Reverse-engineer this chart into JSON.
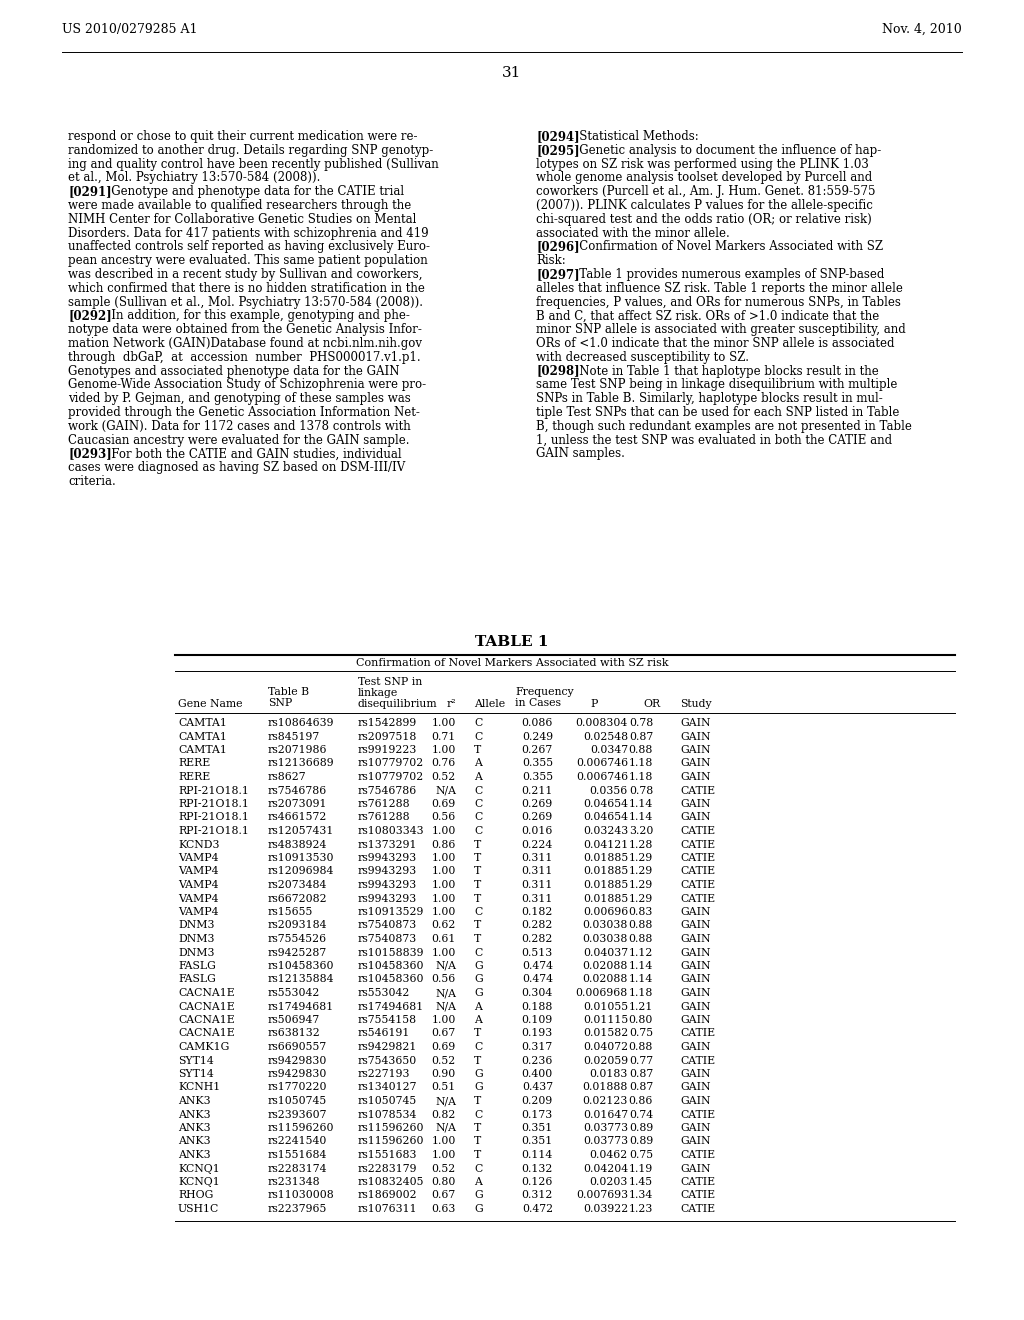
{
  "page_number": "31",
  "patent_number": "US 2010/0279285 A1",
  "patent_date": "Nov. 4, 2010",
  "background_color": "#ffffff",
  "text_color": "#000000",
  "left_column_lines": [
    {
      "text": "respond or chose to quit their current medication were re-",
      "bold_prefix": ""
    },
    {
      "text": "randomized to another drug. Details regarding SNP genotyp-",
      "bold_prefix": ""
    },
    {
      "text": "ing and quality control have been recently published (Sullivan",
      "bold_prefix": ""
    },
    {
      "text": "et al., Mol. Psychiatry 13:570-584 (2008)).",
      "bold_prefix": ""
    },
    {
      "text": "   Genotype and phenotype data for the CATIE trial",
      "bold_prefix": "[0291]"
    },
    {
      "text": "were made available to qualified researchers through the",
      "bold_prefix": ""
    },
    {
      "text": "NIMH Center for Collaborative Genetic Studies on Mental",
      "bold_prefix": ""
    },
    {
      "text": "Disorders. Data for 417 patients with schizophrenia and 419",
      "bold_prefix": ""
    },
    {
      "text": "unaffected controls self reported as having exclusively Euro-",
      "bold_prefix": ""
    },
    {
      "text": "pean ancestry were evaluated. This same patient population",
      "bold_prefix": ""
    },
    {
      "text": "was described in a recent study by Sullivan and coworkers,",
      "bold_prefix": ""
    },
    {
      "text": "which confirmed that there is no hidden stratification in the",
      "bold_prefix": ""
    },
    {
      "text": "sample (Sullivan et al., Mol. Psychiatry 13:570-584 (2008)).",
      "bold_prefix": ""
    },
    {
      "text": "   In addition, for this example, genotyping and phe-",
      "bold_prefix": "[0292]"
    },
    {
      "text": "notype data were obtained from the Genetic Analysis Infor-",
      "bold_prefix": ""
    },
    {
      "text": "mation Network (GAIN)Database found at ncbi.nlm.nih.gov",
      "bold_prefix": ""
    },
    {
      "text": "through  dbGaP,  at  accession  number  PHS000017.v1.p1.",
      "bold_prefix": ""
    },
    {
      "text": "Genotypes and associated phenotype data for the GAIN",
      "bold_prefix": ""
    },
    {
      "text": "Genome-Wide Association Study of Schizophrenia were pro-",
      "bold_prefix": ""
    },
    {
      "text": "vided by P. Gejman, and genotyping of these samples was",
      "bold_prefix": ""
    },
    {
      "text": "provided through the Genetic Association Information Net-",
      "bold_prefix": ""
    },
    {
      "text": "work (GAIN). Data for 1172 cases and 1378 controls with",
      "bold_prefix": ""
    },
    {
      "text": "Caucasian ancestry were evaluated for the GAIN sample.",
      "bold_prefix": ""
    },
    {
      "text": "   For both the CATIE and GAIN studies, individual",
      "bold_prefix": "[0293]"
    },
    {
      "text": "cases were diagnosed as having SZ based on DSM-III/IV",
      "bold_prefix": ""
    },
    {
      "text": "criteria.",
      "bold_prefix": ""
    }
  ],
  "right_column_lines": [
    {
      "text": "   Statistical Methods:",
      "bold_prefix": "[0294]"
    },
    {
      "text": "   Genetic analysis to document the influence of hap-",
      "bold_prefix": "[0295]"
    },
    {
      "text": "lotypes on SZ risk was performed using the PLINK 1.03",
      "bold_prefix": ""
    },
    {
      "text": "whole genome analysis toolset developed by Purcell and",
      "bold_prefix": ""
    },
    {
      "text": "coworkers (Purcell et al., Am. J. Hum. Genet. 81:559-575",
      "bold_prefix": ""
    },
    {
      "text": "(2007)). PLINK calculates P values for the allele-specific",
      "bold_prefix": ""
    },
    {
      "text": "chi-squared test and the odds ratio (OR; or relative risk)",
      "bold_prefix": ""
    },
    {
      "text": "associated with the minor allele.",
      "bold_prefix": ""
    },
    {
      "text": "   Confirmation of Novel Markers Associated with SZ",
      "bold_prefix": "[0296]"
    },
    {
      "text": "Risk:",
      "bold_prefix": ""
    },
    {
      "text": "   Table 1 provides numerous examples of SNP-based",
      "bold_prefix": "[0297]"
    },
    {
      "text": "alleles that influence SZ risk. Table 1 reports the minor allele",
      "bold_prefix": ""
    },
    {
      "text": "frequencies, P values, and ORs for numerous SNPs, in Tables",
      "bold_prefix": ""
    },
    {
      "text": "B and C, that affect SZ risk. ORs of >1.0 indicate that the",
      "bold_prefix": ""
    },
    {
      "text": "minor SNP allele is associated with greater susceptibility, and",
      "bold_prefix": ""
    },
    {
      "text": "ORs of <1.0 indicate that the minor SNP allele is associated",
      "bold_prefix": ""
    },
    {
      "text": "with decreased susceptibility to SZ.",
      "bold_prefix": ""
    },
    {
      "text": "   Note in Table 1 that haplotype blocks result in the",
      "bold_prefix": "[0298]"
    },
    {
      "text": "same Test SNP being in linkage disequilibrium with multiple",
      "bold_prefix": ""
    },
    {
      "text": "SNPs in Table B. Similarly, haplotype blocks result in mul-",
      "bold_prefix": ""
    },
    {
      "text": "tiple Test SNPs that can be used for each SNP listed in Table",
      "bold_prefix": ""
    },
    {
      "text": "B, though such redundant examples are not presented in Table",
      "bold_prefix": ""
    },
    {
      "text": "1, unless the test SNP was evaluated in both the CATIE and",
      "bold_prefix": ""
    },
    {
      "text": "GAIN samples.",
      "bold_prefix": ""
    }
  ],
  "table_title": "TABLE 1",
  "table_subtitle": "Confirmation of Novel Markers Associated with SZ risk",
  "table_data": [
    [
      "CAMTA1",
      "rs10864639",
      "rs1542899",
      "1.00",
      "C",
      "0.086",
      "0.008304",
      "0.78",
      "GAIN"
    ],
    [
      "CAMTA1",
      "rs845197",
      "rs2097518",
      "0.71",
      "C",
      "0.249",
      "0.02548",
      "0.87",
      "GAIN"
    ],
    [
      "CAMTA1",
      "rs2071986",
      "rs9919223",
      "1.00",
      "T",
      "0.267",
      "0.0347",
      "0.88",
      "GAIN"
    ],
    [
      "RERE",
      "rs12136689",
      "rs10779702",
      "0.76",
      "A",
      "0.355",
      "0.006746",
      "1.18",
      "GAIN"
    ],
    [
      "RERE",
      "rs8627",
      "rs10779702",
      "0.52",
      "A",
      "0.355",
      "0.006746",
      "1.18",
      "GAIN"
    ],
    [
      "RPI-21O18.1",
      "rs7546786",
      "rs7546786",
      "N/A",
      "C",
      "0.211",
      "0.0356",
      "0.78",
      "CATIE"
    ],
    [
      "RPI-21O18.1",
      "rs2073091",
      "rs761288",
      "0.69",
      "C",
      "0.269",
      "0.04654",
      "1.14",
      "GAIN"
    ],
    [
      "RPI-21O18.1",
      "rs4661572",
      "rs761288",
      "0.56",
      "C",
      "0.269",
      "0.04654",
      "1.14",
      "GAIN"
    ],
    [
      "RPI-21O18.1",
      "rs12057431",
      "rs10803343",
      "1.00",
      "C",
      "0.016",
      "0.03243",
      "3.20",
      "CATIE"
    ],
    [
      "KCND3",
      "rs4838924",
      "rs1373291",
      "0.86",
      "T",
      "0.224",
      "0.04121",
      "1.28",
      "CATIE"
    ],
    [
      "VAMP4",
      "rs10913530",
      "rs9943293",
      "1.00",
      "T",
      "0.311",
      "0.01885",
      "1.29",
      "CATIE"
    ],
    [
      "VAMP4",
      "rs12096984",
      "rs9943293",
      "1.00",
      "T",
      "0.311",
      "0.01885",
      "1.29",
      "CATIE"
    ],
    [
      "VAMP4",
      "rs2073484",
      "rs9943293",
      "1.00",
      "T",
      "0.311",
      "0.01885",
      "1.29",
      "CATIE"
    ],
    [
      "VAMP4",
      "rs6672082",
      "rs9943293",
      "1.00",
      "T",
      "0.311",
      "0.01885",
      "1.29",
      "CATIE"
    ],
    [
      "VAMP4",
      "rs15655",
      "rs10913529",
      "1.00",
      "C",
      "0.182",
      "0.00696",
      "0.83",
      "GAIN"
    ],
    [
      "DNM3",
      "rs2093184",
      "rs7540873",
      "0.62",
      "T",
      "0.282",
      "0.03038",
      "0.88",
      "GAIN"
    ],
    [
      "DNM3",
      "rs7554526",
      "rs7540873",
      "0.61",
      "T",
      "0.282",
      "0.03038",
      "0.88",
      "GAIN"
    ],
    [
      "DNM3",
      "rs9425287",
      "rs10158839",
      "1.00",
      "C",
      "0.513",
      "0.04037",
      "1.12",
      "GAIN"
    ],
    [
      "FASLG",
      "rs10458360",
      "rs10458360",
      "N/A",
      "G",
      "0.474",
      "0.02088",
      "1.14",
      "GAIN"
    ],
    [
      "FASLG",
      "rs12135884",
      "rs10458360",
      "0.56",
      "G",
      "0.474",
      "0.02088",
      "1.14",
      "GAIN"
    ],
    [
      "CACNA1E",
      "rs553042",
      "rs553042",
      "N/A",
      "G",
      "0.304",
      "0.006968",
      "1.18",
      "GAIN"
    ],
    [
      "CACNA1E",
      "rs17494681",
      "rs17494681",
      "N/A",
      "A",
      "0.188",
      "0.01055",
      "1.21",
      "GAIN"
    ],
    [
      "CACNA1E",
      "rs506947",
      "rs7554158",
      "1.00",
      "A",
      "0.109",
      "0.01115",
      "0.80",
      "GAIN"
    ],
    [
      "CACNA1E",
      "rs638132",
      "rs546191",
      "0.67",
      "T",
      "0.193",
      "0.01582",
      "0.75",
      "CATIE"
    ],
    [
      "CAMK1G",
      "rs6690557",
      "rs9429821",
      "0.69",
      "C",
      "0.317",
      "0.04072",
      "0.88",
      "GAIN"
    ],
    [
      "SYT14",
      "rs9429830",
      "rs7543650",
      "0.52",
      "T",
      "0.236",
      "0.02059",
      "0.77",
      "CATIE"
    ],
    [
      "SYT14",
      "rs9429830",
      "rs227193",
      "0.90",
      "G",
      "0.400",
      "0.0183",
      "0.87",
      "GAIN"
    ],
    [
      "KCNH1",
      "rs1770220",
      "rs1340127",
      "0.51",
      "G",
      "0.437",
      "0.01888",
      "0.87",
      "GAIN"
    ],
    [
      "ANK3",
      "rs1050745",
      "rs1050745",
      "N/A",
      "T",
      "0.209",
      "0.02123",
      "0.86",
      "GAIN"
    ],
    [
      "ANK3",
      "rs2393607",
      "rs1078534",
      "0.82",
      "C",
      "0.173",
      "0.01647",
      "0.74",
      "CATIE"
    ],
    [
      "ANK3",
      "rs11596260",
      "rs11596260",
      "N/A",
      "T",
      "0.351",
      "0.03773",
      "0.89",
      "GAIN"
    ],
    [
      "ANK3",
      "rs2241540",
      "rs11596260",
      "1.00",
      "T",
      "0.351",
      "0.03773",
      "0.89",
      "GAIN"
    ],
    [
      "ANK3",
      "rs1551684",
      "rs1551683",
      "1.00",
      "T",
      "0.114",
      "0.0462",
      "0.75",
      "CATIE"
    ],
    [
      "KCNQ1",
      "rs2283174",
      "rs2283179",
      "0.52",
      "C",
      "0.132",
      "0.04204",
      "1.19",
      "GAIN"
    ],
    [
      "KCNQ1",
      "rs231348",
      "rs10832405",
      "0.80",
      "A",
      "0.126",
      "0.0203",
      "1.45",
      "CATIE"
    ],
    [
      "RHOG",
      "rs11030008",
      "rs1869002",
      "0.67",
      "G",
      "0.312",
      "0.007693",
      "1.34",
      "CATIE"
    ],
    [
      "USH1C",
      "rs2237965",
      "rs1076311",
      "0.63",
      "G",
      "0.472",
      "0.03922",
      "1.23",
      "CATIE"
    ]
  ]
}
